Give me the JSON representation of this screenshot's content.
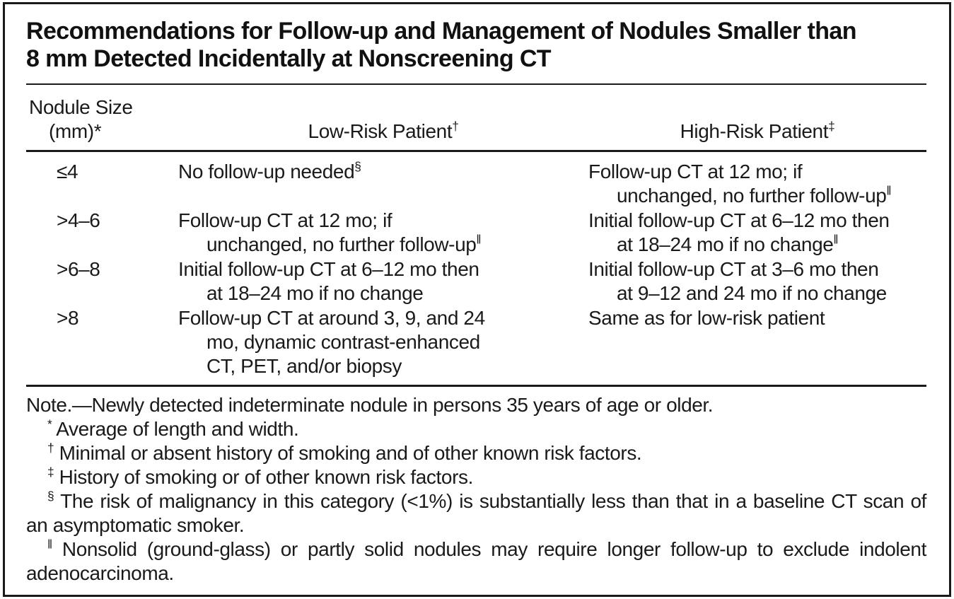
{
  "title": {
    "line1": "Recommendations for Follow-up and Management of Nodules Smaller than",
    "line2": "8 mm Detected Incidentally at Nonscreening CT"
  },
  "columns": {
    "size": {
      "line1": "Nodule Size",
      "line2": "(mm)*"
    },
    "low": {
      "label": "Low-Risk Patient",
      "sup": "†"
    },
    "high": {
      "label": "High-Risk Patient",
      "sup": "‡"
    }
  },
  "rows": [
    {
      "size": "≤4",
      "low": [
        {
          "t": "No follow-up needed",
          "s": "§"
        }
      ],
      "high": [
        {
          "t": "Follow-up CT at 12 mo; if"
        },
        {
          "t": "unchanged, no further follow-up",
          "s": "‖"
        }
      ]
    },
    {
      "size": ">4–6",
      "low": [
        {
          "t": "Follow-up CT at 12 mo; if"
        },
        {
          "t": "unchanged, no further follow-up",
          "s": "‖"
        }
      ],
      "high": [
        {
          "t": "Initial follow-up CT at 6–12 mo then"
        },
        {
          "t": "at 18–24 mo if no change",
          "s": "‖"
        }
      ]
    },
    {
      "size": ">6–8",
      "low": [
        {
          "t": "Initial follow-up CT at 6–12 mo then"
        },
        {
          "t": "at 18–24 mo if no change"
        }
      ],
      "high": [
        {
          "t": "Initial follow-up CT at 3–6 mo then"
        },
        {
          "t": "at 9–12 and 24 mo if no change"
        }
      ]
    },
    {
      "size": ">8",
      "low": [
        {
          "t": "Follow-up CT at around 3, 9, and 24"
        },
        {
          "t": "mo, dynamic contrast-enhanced"
        },
        {
          "t": "CT, PET, and/or biopsy"
        }
      ],
      "high": [
        {
          "t": "Same as for low-risk patient"
        }
      ]
    }
  ],
  "footnotes": {
    "note": "Note.—Newly detected indeterminate nodule in persons 35 years of age or older.",
    "items": [
      {
        "marker": "*",
        "text": "Average of length and width."
      },
      {
        "marker": "†",
        "text": "Minimal or absent history of smoking and of other known risk factors."
      },
      {
        "marker": "‡",
        "text": "History of smoking or of other known risk factors."
      },
      {
        "marker": "§",
        "text": "The risk of malignancy in this category (<1%) is substantially less than that in a baseline CT scan of an asymptomatic smoker."
      },
      {
        "marker": "‖",
        "text": "Nonsolid (ground-glass) or partly solid nodules may require longer follow-up to exclude indolent adenocarcinoma."
      }
    ]
  },
  "colors": {
    "text": "#1a1a1a",
    "background": "#ffffff",
    "border": "#1a1a1a"
  }
}
